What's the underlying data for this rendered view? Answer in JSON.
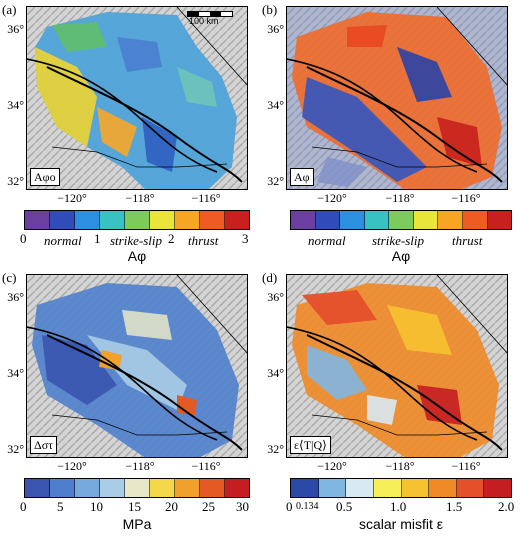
{
  "panels": [
    {
      "label": "(a)",
      "inset": "Aφo",
      "lat_ticks": [
        "36°",
        "34°",
        "32°"
      ],
      "lon_ticks": [
        "−120°",
        "−118°",
        "−116°"
      ],
      "scale_bar": "100 km",
      "colorbar": {
        "colors": [
          "#6a3fa0",
          "#2f4cb8",
          "#2d8fe0",
          "#38c2c2",
          "#7dcb5b",
          "#e9e53a",
          "#f6a623",
          "#ef5b23",
          "#c8201e"
        ],
        "tick_labels": [
          "0",
          "1",
          "2",
          "3"
        ],
        "regime_labels": [
          "normal",
          "strike-slip",
          "thrust"
        ],
        "title": "Aφ"
      }
    },
    {
      "label": "(b)",
      "inset": "Aφ",
      "lat_ticks": [
        "36°",
        "34°",
        "32°"
      ],
      "lon_ticks": [
        "−120°",
        "−118°",
        "−116°"
      ],
      "colorbar": {
        "colors": [
          "#6a3fa0",
          "#2f4cb8",
          "#2d8fe0",
          "#38c2c2",
          "#7dcb5b",
          "#e9e53a",
          "#f6a623",
          "#ef5b23",
          "#c8201e"
        ],
        "regime_labels": [
          "normal",
          "strike-slip",
          "thrust"
        ],
        "title": "Aφ"
      }
    },
    {
      "label": "(c)",
      "inset": "Δστ",
      "lat_ticks": [
        "36°",
        "34°",
        "32°"
      ],
      "lon_ticks": [
        "−120°",
        "−118°",
        "−116°"
      ],
      "colorbar": {
        "colors": [
          "#3a55b0",
          "#4f7fcc",
          "#77a9dd",
          "#a9cde6",
          "#e8e8c8",
          "#f5d84a",
          "#f2a02c",
          "#e35a25",
          "#c41e22"
        ],
        "tick_labels": [
          "0",
          "5",
          "10",
          "15",
          "20",
          "25",
          "30"
        ],
        "title": "MPa"
      }
    },
    {
      "label": "(d)",
      "inset": "ε⟨T|Q⟩",
      "lat_ticks": [
        "36°",
        "34°",
        "32°"
      ],
      "lon_ticks": [
        "−120°",
        "−118°",
        "−116°"
      ],
      "colorbar": {
        "colors": [
          "#2b4aa8",
          "#7fb6e2",
          "#d7e9f2",
          "#f6ef5a",
          "#f7c231",
          "#f08a27",
          "#e4502a",
          "#c41e22"
        ],
        "tick_labels": [
          "0",
          "0.134",
          "0.5",
          "1.0",
          "1.5",
          "2.0"
        ],
        "title": "scalar misfit ε"
      }
    }
  ]
}
